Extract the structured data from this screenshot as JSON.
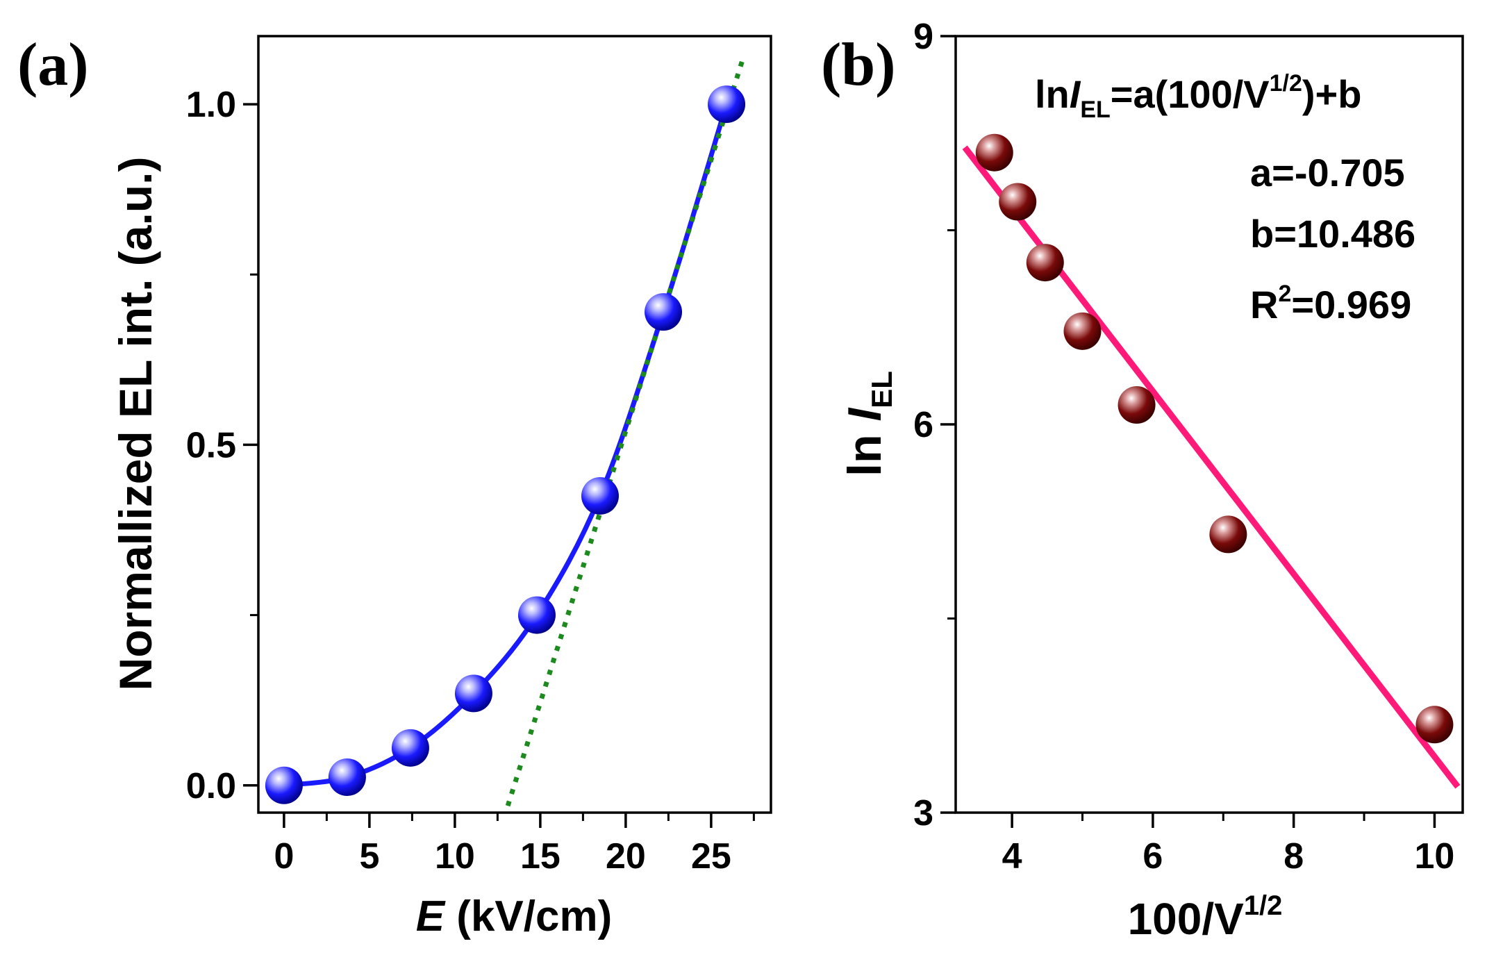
{
  "colors": {
    "blue_series": "#1a1aff",
    "green_fit": "#1c8a1c",
    "maroon_points": "#7a0a0a",
    "pink_fit": "#ff1a7a",
    "axis": "#000000"
  },
  "chart_data": [
    {
      "panel_label": "(a)",
      "type": "line",
      "xlabel_italic": "E",
      "xlabel_rest": " (kV/cm)",
      "ylabel": "Normallized EL int. (a.u.)",
      "xlim": [
        -1.5,
        28.5
      ],
      "ylim": [
        -0.04,
        1.1
      ],
      "x_ticks": [
        0,
        5,
        10,
        15,
        20,
        25
      ],
      "x_tick_labels": [
        "0",
        "5",
        "10",
        "15",
        "20",
        "25"
      ],
      "x_minor_ticks": [
        2.5,
        7.5,
        12.5,
        17.5,
        22.5,
        27.5
      ],
      "y_ticks": [
        0.0,
        0.5,
        1.0
      ],
      "y_tick_labels": [
        "0.0",
        "0.5",
        "1.0"
      ],
      "y_minor_ticks": [
        0.25,
        0.75
      ],
      "series": [
        {
          "marker": "sphere",
          "line": "smooth-solid",
          "x": [
            0,
            3.7,
            7.4,
            11.1,
            14.8,
            18.5,
            22.2,
            25.9
          ],
          "y": [
            0.0,
            0.012,
            0.055,
            0.135,
            0.25,
            0.425,
            0.695,
            1.0
          ]
        },
        {
          "line": "dotted",
          "x": [
            13.1,
            26.9
          ],
          "y": [
            -0.03,
            1.07
          ]
        }
      ]
    },
    {
      "panel_label": "(b)",
      "type": "scatter",
      "xlabel_main": "100/V",
      "xlabel_sup": "1/2",
      "ylabel_main": "ln ",
      "ylabel_italic": "I",
      "ylabel_sub": "EL",
      "xlim": [
        3.2,
        10.4
      ],
      "ylim": [
        3.0,
        9.0
      ],
      "x_ticks": [
        4,
        6,
        8,
        10
      ],
      "x_tick_labels": [
        "4",
        "6",
        "8",
        "10"
      ],
      "x_minor_ticks": [
        3,
        5,
        7,
        9
      ],
      "y_ticks": [
        3,
        6,
        9
      ],
      "y_tick_labels": [
        "3",
        "6",
        "9"
      ],
      "y_minor_ticks": [
        4.5,
        7.5
      ],
      "series": [
        {
          "marker": "sphere",
          "x": [
            3.75,
            4.08,
            4.47,
            5.0,
            5.77,
            7.07,
            10.0
          ],
          "y": [
            8.1,
            7.72,
            7.25,
            6.72,
            6.15,
            5.15,
            3.68
          ]
        },
        {
          "line": "solid-fit",
          "x": [
            3.33,
            10.33
          ],
          "y": [
            8.14,
            3.2
          ]
        }
      ],
      "annotations": {
        "equation_prefix": "ln",
        "equation_italic": "I",
        "equation_sub": "EL",
        "equation_mid": "=a(100/V",
        "equation_sup": "1/2",
        "equation_suffix": ")+b",
        "a_text": "a=-0.705",
        "b_text": "b=10.486",
        "r2_prefix": "R",
        "r2_sup": "2",
        "r2_suffix": "=0.969"
      }
    }
  ]
}
